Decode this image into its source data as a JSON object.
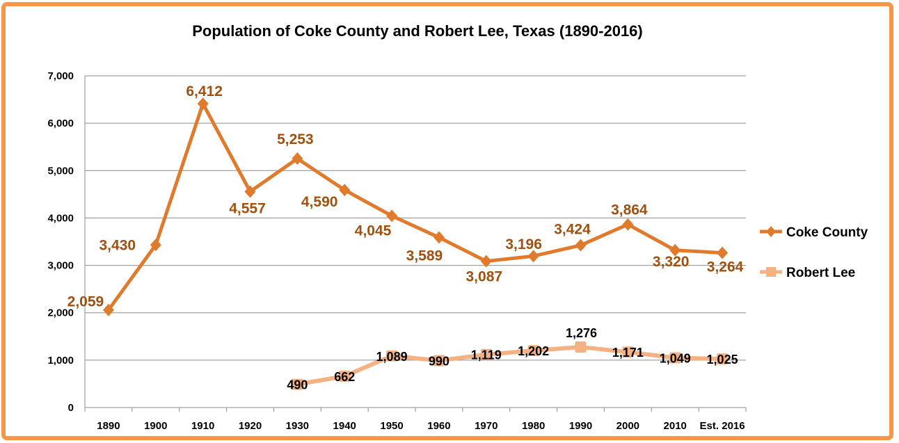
{
  "chart_data": {
    "type": "line",
    "title": "Population of Coke County and Robert Lee, Texas (1890-2016)",
    "xlabel": "",
    "ylabel": "",
    "categories": [
      "1890",
      "1900",
      "1910",
      "1920",
      "1930",
      "1940",
      "1950",
      "1960",
      "1970",
      "1980",
      "1990",
      "2000",
      "2010",
      "Est. 2016"
    ],
    "ylim": [
      0,
      7000
    ],
    "yticks": [
      0,
      1000,
      2000,
      3000,
      4000,
      5000,
      6000,
      7000
    ],
    "ytick_labels": [
      "0",
      "1,000",
      "2,000",
      "3,000",
      "4,000",
      "5,000",
      "6,000",
      "7,000"
    ],
    "grid": true,
    "legend": "right",
    "series": [
      {
        "name": "Coke County",
        "color": "#e07b2e",
        "label_color": "#a0500f",
        "marker": "diamond",
        "values": [
          2059,
          3430,
          6412,
          4557,
          5253,
          4590,
          4045,
          3589,
          3087,
          3196,
          3424,
          3864,
          3320,
          3264
        ],
        "labels": [
          "2,059",
          "3,430",
          "6,412",
          "4,557",
          "5,253",
          "4,590",
          "4,045",
          "3,589",
          "3,087",
          "3,196",
          "3,424",
          "3,864",
          "3,320",
          "3,264"
        ]
      },
      {
        "name": "Robert Lee",
        "color": "#f4b183",
        "label_color": "#000000",
        "marker": "square",
        "values": [
          null,
          null,
          null,
          null,
          490,
          662,
          1089,
          990,
          1119,
          1202,
          1276,
          1171,
          1049,
          1025
        ],
        "labels": [
          null,
          null,
          null,
          null,
          "490",
          "662",
          "1,089",
          "990",
          "1,119",
          "1,202",
          "1,276",
          "1,171",
          "1,049",
          "1,025"
        ]
      }
    ]
  },
  "frame_color": "#f79646"
}
